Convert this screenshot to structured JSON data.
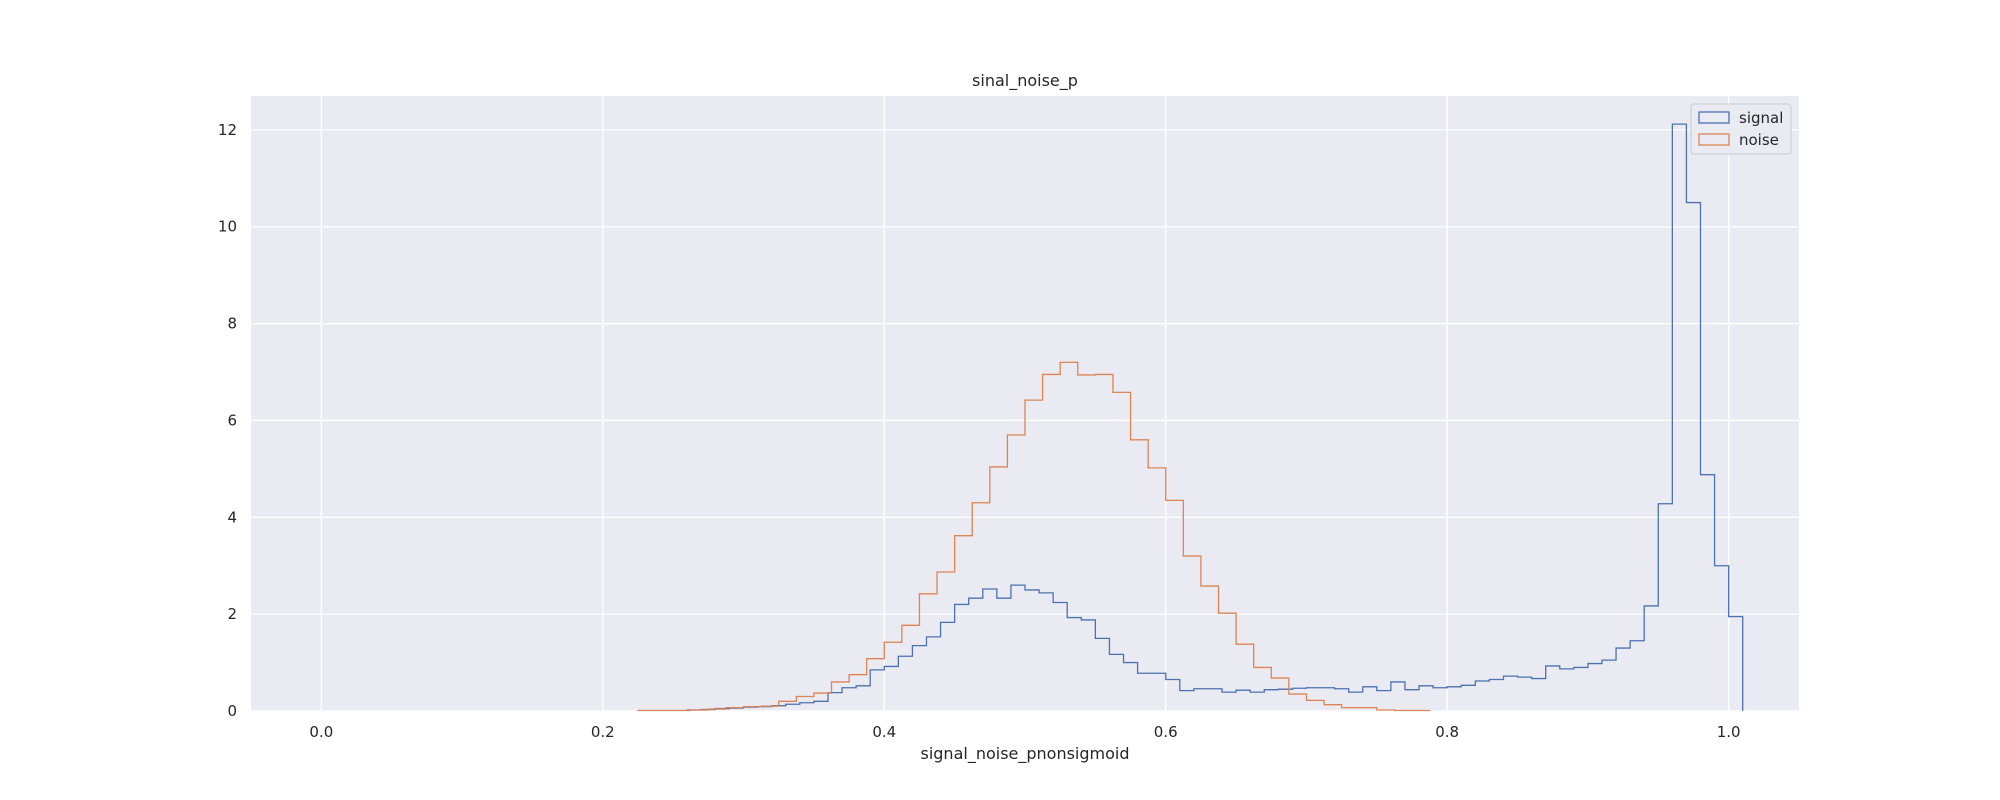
{
  "chart_data": {
    "type": "histogram",
    "title": "sinal_noise_p",
    "xlabel": "signal_noise_pnonsigmoid",
    "ylabel": "",
    "xlim": [
      -0.05,
      1.05
    ],
    "ylim": [
      0,
      12.7
    ],
    "x_ticks": [
      "0.0",
      "0.2",
      "0.4",
      "0.6",
      "0.8",
      "1.0"
    ],
    "y_ticks": [
      "0",
      "2",
      "4",
      "6",
      "8",
      "10",
      "12"
    ],
    "grid": true,
    "legend_position": "top-right",
    "colors": {
      "background": "#eaeaf2",
      "grid": "#ffffff",
      "signal": "#4c72b0",
      "noise": "#dd8452"
    },
    "series": [
      {
        "name": "signal",
        "histtype": "step",
        "bin_start": 0.26,
        "bin_width": 0.01,
        "values": [
          0.02,
          0.03,
          0.05,
          0.06,
          0.08,
          0.09,
          0.11,
          0.14,
          0.17,
          0.2,
          0.38,
          0.48,
          0.52,
          0.85,
          0.92,
          1.13,
          1.35,
          1.53,
          1.83,
          2.2,
          2.33,
          2.52,
          2.33,
          2.6,
          2.5,
          2.44,
          2.24,
          1.93,
          1.88,
          1.5,
          1.17,
          1.0,
          0.78,
          0.78,
          0.65,
          0.42,
          0.46,
          0.46,
          0.39,
          0.43,
          0.39,
          0.44,
          0.45,
          0.47,
          0.48,
          0.48,
          0.46,
          0.39,
          0.5,
          0.42,
          0.6,
          0.44,
          0.52,
          0.48,
          0.5,
          0.53,
          0.62,
          0.65,
          0.72,
          0.7,
          0.67,
          0.93,
          0.87,
          0.9,
          0.98,
          1.05,
          1.3,
          1.45,
          2.17,
          4.28,
          12.12,
          10.5,
          4.88,
          3.0,
          1.95
        ]
      },
      {
        "name": "noise",
        "histtype": "step",
        "bin_start": 0.225,
        "bin_width": 0.0125,
        "values": [
          0.01,
          0.01,
          0.01,
          0.02,
          0.04,
          0.07,
          0.09,
          0.1,
          0.2,
          0.3,
          0.37,
          0.6,
          0.75,
          1.08,
          1.42,
          1.77,
          2.42,
          2.87,
          3.62,
          4.3,
          5.04,
          5.7,
          6.42,
          6.95,
          7.2,
          6.94,
          6.95,
          6.58,
          5.6,
          5.02,
          4.35,
          3.2,
          2.58,
          2.02,
          1.38,
          0.9,
          0.68,
          0.35,
          0.22,
          0.13,
          0.07,
          0.07,
          0.02,
          0.01,
          0.01
        ]
      }
    ]
  }
}
